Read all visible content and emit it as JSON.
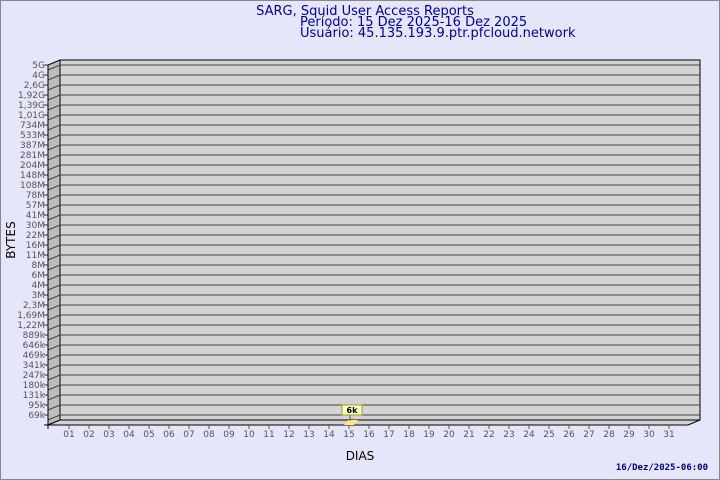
{
  "header": {
    "title": "SARG, Squid User Access Reports",
    "period": "Período: 15 Dez 2025-16 Dez 2025",
    "user": "Usuário: 45.135.193.9.ptr.pfcloud.network"
  },
  "footer": {
    "timestamp": "16/Dez/2025-06:00"
  },
  "colors": {
    "background": "#e6e6fa",
    "plot": "#d3d3d3",
    "bar": "#ffe680",
    "label_box": "#ffffc0",
    "title": "#0000a0"
  },
  "chart_data": {
    "type": "bar",
    "title": "",
    "xlabel": "DIAS",
    "ylabel": "BYTES",
    "y_scale": "log",
    "grid": true,
    "y_ticks": [
      "5G",
      "4G",
      "2,6G",
      "1,92G",
      "1,39G",
      "1,01G",
      "734M",
      "533M",
      "387M",
      "281M",
      "204M",
      "148M",
      "108M",
      "78M",
      "57M",
      "41M",
      "30M",
      "22M",
      "16M",
      "11M",
      "8M",
      "6M",
      "4M",
      "3M",
      "2,3M",
      "1,69M",
      "1,22M",
      "889k",
      "646k",
      "469k",
      "341k",
      "247k",
      "180k",
      "131k",
      "95k",
      "69k"
    ],
    "categories": [
      "01",
      "02",
      "03",
      "04",
      "05",
      "06",
      "07",
      "08",
      "09",
      "10",
      "11",
      "12",
      "13",
      "14",
      "15",
      "16",
      "17",
      "18",
      "19",
      "20",
      "21",
      "22",
      "23",
      "24",
      "25",
      "26",
      "27",
      "28",
      "29",
      "30",
      "31"
    ],
    "bars": [
      {
        "day": "15",
        "value_label": "6k"
      }
    ]
  }
}
